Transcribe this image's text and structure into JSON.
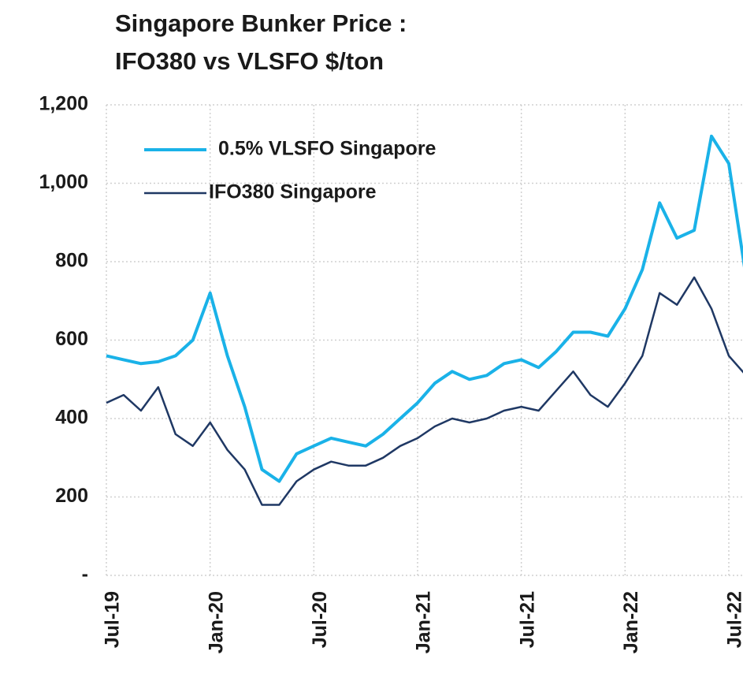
{
  "chart_data": {
    "type": "line",
    "title": [
      "Singapore Bunker Price :",
      "IFO380 vs VLSFO $/ton"
    ],
    "x": [
      "2019-07",
      "2019-08",
      "2019-09",
      "2019-10",
      "2019-11",
      "2019-12",
      "2020-01",
      "2020-02",
      "2020-03",
      "2020-04",
      "2020-05",
      "2020-06",
      "2020-07",
      "2020-08",
      "2020-09",
      "2020-10",
      "2020-11",
      "2020-12",
      "2021-01",
      "2021-02",
      "2021-03",
      "2021-04",
      "2021-05",
      "2021-06",
      "2021-07",
      "2021-08",
      "2021-09",
      "2021-10",
      "2021-11",
      "2021-12",
      "2022-01",
      "2022-02",
      "2022-03",
      "2022-04",
      "2022-05",
      "2022-06",
      "2022-07",
      "2022-08"
    ],
    "series": [
      {
        "name": "0.5% VLSFO Singapore",
        "color": "#1ab2e8",
        "values": [
          560,
          550,
          540,
          545,
          560,
          600,
          720,
          560,
          430,
          270,
          240,
          310,
          330,
          350,
          340,
          330,
          360,
          400,
          440,
          490,
          520,
          500,
          510,
          540,
          550,
          530,
          570,
          620,
          620,
          610,
          680,
          780,
          950,
          860,
          880,
          1120,
          1050,
          760
        ]
      },
      {
        "name": "IFO380 Singapore",
        "color": "#1f3864",
        "values": [
          440,
          460,
          420,
          480,
          360,
          330,
          390,
          320,
          270,
          180,
          180,
          240,
          270,
          290,
          280,
          280,
          300,
          330,
          350,
          380,
          400,
          390,
          400,
          420,
          430,
          420,
          470,
          520,
          460,
          430,
          490,
          560,
          720,
          690,
          760,
          680,
          560,
          510
        ]
      }
    ],
    "xlim": [
      "2019-07",
      "2022-08"
    ],
    "xticks": [
      {
        "value": "2019-07",
        "label": "Jul-19"
      },
      {
        "value": "2020-01",
        "label": "Jan-20"
      },
      {
        "value": "2020-07",
        "label": "Jul-20"
      },
      {
        "value": "2021-01",
        "label": "Jan-21"
      },
      {
        "value": "2021-07",
        "label": "Jul-21"
      },
      {
        "value": "2022-01",
        "label": "Jan-22"
      },
      {
        "value": "2022-07",
        "label": "Jul-22"
      }
    ],
    "ylim": [
      0,
      1200
    ],
    "yticks": [
      {
        "value": 0,
        "label": "-"
      },
      200,
      400,
      600,
      800,
      {
        "value": 1000,
        "label": "1,000"
      },
      {
        "value": 1200,
        "label": "1,200"
      }
    ],
    "grid": true
  }
}
